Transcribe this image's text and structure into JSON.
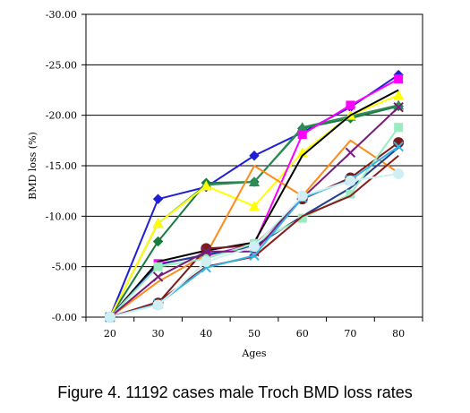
{
  "figure": {
    "caption": "Figure 4. 11192 cases male Troch BMD loss rates"
  },
  "chart_data": {
    "type": "line",
    "xlabel": "Ages",
    "ylabel": "BMD loss (%)",
    "categories": [
      "20",
      "30",
      "40",
      "50",
      "60",
      "70",
      "80"
    ],
    "ylim": [
      0,
      -30
    ],
    "y_ticks": [
      {
        "value": 0,
        "label": "-0.00"
      },
      {
        "value": -5,
        "label": "-5.00"
      },
      {
        "value": -10,
        "label": "-10.00"
      },
      {
        "value": -15,
        "label": "-15.00"
      },
      {
        "value": -20,
        "label": "-20.00"
      },
      {
        "value": -25,
        "label": "-25.00"
      },
      {
        "value": -30,
        "label": "-30.00"
      }
    ],
    "grid": "horizontal",
    "legend": "none",
    "series": [
      {
        "color": "#1f1fd6",
        "marker": "diamond",
        "values": [
          0,
          -11.7,
          -12.9,
          -16.0,
          -18.3,
          -20.8,
          -24.0
        ]
      },
      {
        "color": "#1a7a40",
        "marker": "diamond",
        "values": [
          0,
          -7.5,
          -13.3,
          -13.4,
          -18.7,
          -19.7,
          -20.9
        ]
      },
      {
        "color": "#2e8b57",
        "marker": "triangle",
        "values": [
          0,
          -9.3,
          -13.1,
          -13.4,
          -18.8,
          -19.9,
          -21.0
        ]
      },
      {
        "color": "#ffff00",
        "marker": "triangle",
        "values": [
          0,
          -9.3,
          -13.0,
          -11.0,
          -16.3,
          -20.0,
          -22.0
        ]
      },
      {
        "color": "#ff00ff",
        "marker": "square",
        "values": [
          0,
          -5.3,
          -6.1,
          -7.2,
          -18.1,
          -21.0,
          -23.6
        ]
      },
      {
        "color": "#ff8c1a",
        "marker": "none",
        "values": [
          0,
          -3.5,
          -6.2,
          -15.0,
          -12.0,
          -17.5,
          -14.3
        ]
      },
      {
        "color": "#000000",
        "marker": "none",
        "values": [
          0,
          -5.5,
          -6.6,
          -7.4,
          -16.0,
          -20.0,
          -22.5
        ]
      },
      {
        "color": "#7a1c1c",
        "marker": "circle",
        "values": [
          0,
          -1.4,
          -6.8,
          -7.1,
          -11.7,
          -13.8,
          -17.3
        ]
      },
      {
        "color": "#1f3f8f",
        "marker": "none",
        "values": [
          0,
          -5.2,
          -6.2,
          -7.0,
          -10.0,
          -12.8,
          -16.8
        ]
      },
      {
        "color": "#9aecc0",
        "marker": "square",
        "values": [
          0,
          -5.0,
          -5.8,
          -7.3,
          -9.8,
          -12.2,
          -18.8
        ]
      },
      {
        "color": "#7a1a7a",
        "marker": "x",
        "values": [
          0,
          -4.0,
          -6.5,
          -6.5,
          -11.8,
          -16.3,
          -20.8
        ]
      },
      {
        "color": "#8a1a1a",
        "marker": "none",
        "values": [
          0,
          -1.5,
          -5.0,
          -6.0,
          -10.0,
          -12.0,
          -16.0
        ]
      },
      {
        "color": "#33b5e5",
        "marker": "x",
        "values": [
          0,
          -1.3,
          -4.9,
          -6.1,
          -11.8,
          -13.6,
          -16.9
        ]
      },
      {
        "color": "#cfeff5",
        "marker": "circle",
        "values": [
          0,
          -1.2,
          -5.5,
          -7.0,
          -12.0,
          -13.5,
          -14.2
        ]
      }
    ]
  }
}
